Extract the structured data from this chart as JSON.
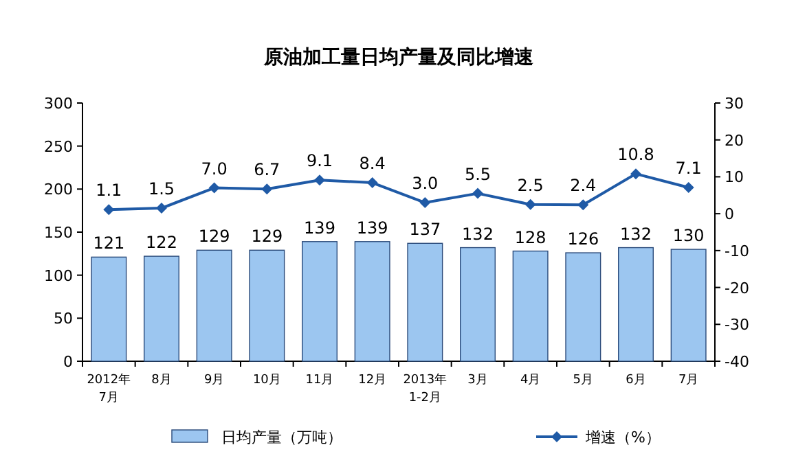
{
  "chart_data": {
    "type": "bar",
    "title": "原油加工量日均产量及同比增速",
    "categories": [
      "2012年\n7月",
      "8月",
      "9月",
      "10月",
      "11月",
      "12月",
      "2013年\n1-2月",
      "3月",
      "4月",
      "5月",
      "6月",
      "7月"
    ],
    "series": [
      {
        "name": "日均产量（万吨）",
        "color": "#9cc6f0",
        "values": [
          121,
          122,
          129,
          129,
          139,
          139,
          137,
          132,
          128,
          126,
          132,
          130
        ]
      },
      {
        "name": "增速（%）",
        "type": "line",
        "axis": "y2",
        "color": "#1f5aa6",
        "marker": "diamond",
        "values": [
          1.1,
          1.5,
          7.0,
          6.7,
          9.1,
          8.4,
          3.0,
          5.5,
          2.5,
          2.4,
          10.8,
          7.1
        ],
        "value_labels": [
          "1.1",
          "1.5",
          "7.0",
          "6.7",
          "9.1",
          "8.4",
          "3.0",
          "5.5",
          "2.5",
          "2.4",
          "10.8",
          "7.1"
        ]
      }
    ],
    "data_labels": true,
    "ylim": [
      0,
      300
    ],
    "yticks": [
      0,
      50,
      100,
      150,
      200,
      250,
      300
    ],
    "y2lim": [
      -40,
      30
    ],
    "y2ticks": [
      -40,
      -30,
      -20,
      -10,
      0,
      10,
      20,
      30
    ],
    "legend": "bottom",
    "grid": false
  }
}
